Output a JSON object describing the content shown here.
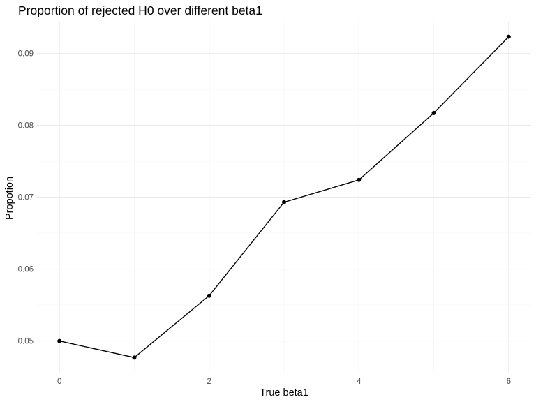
{
  "chart_data": {
    "type": "line",
    "title": "Proportion of rejected H0 over different beta1",
    "xlabel": "True beta1",
    "ylabel": "Propotion",
    "x": [
      0,
      1,
      2,
      3,
      4,
      5,
      6
    ],
    "series": [
      {
        "values": [
          0.05,
          0.0477,
          0.0563,
          0.0693,
          0.0724,
          0.0817,
          0.0923
        ]
      }
    ],
    "xlim": [
      -0.3,
      6.3
    ],
    "ylim": [
      0.0455,
      0.0945
    ],
    "x_ticks": [
      0,
      2,
      4,
      6
    ],
    "x_tick_labels": [
      "0",
      "2",
      "4",
      "6"
    ],
    "x_minor_ticks": [
      1,
      3,
      5
    ],
    "y_ticks": [
      0.05,
      0.06,
      0.07,
      0.08,
      0.09
    ],
    "y_tick_labels": [
      "0.05",
      "0.06",
      "0.07",
      "0.08",
      "0.09"
    ],
    "y_minor_ticks": [
      0.055,
      0.065,
      0.075,
      0.085
    ],
    "grid": true,
    "legend": "none",
    "line_color": "#000000",
    "point_color": "#000000",
    "grid_color": "#ebebeb",
    "background_color": "#ffffff"
  }
}
